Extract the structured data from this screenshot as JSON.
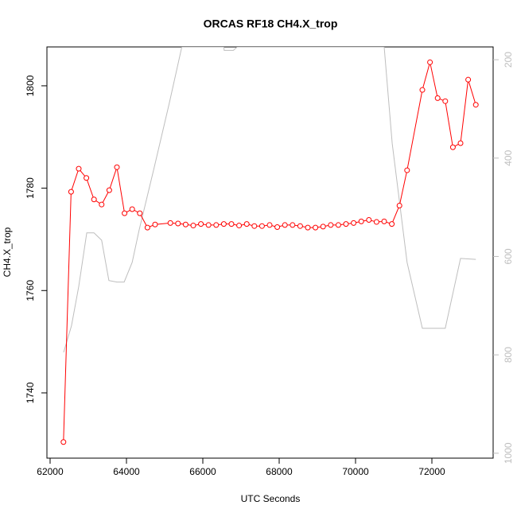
{
  "chart_data": {
    "type": "line",
    "title": "ORCAS RF18 CH4.X_trop",
    "x_label": "UTC Seconds",
    "y_label": "CH4.X_trop",
    "xlim": [
      61917,
      73604
    ],
    "ylim": [
      1727.25,
      1807.6
    ],
    "y2lim": [
      1010,
      174
    ],
    "xticks": [
      62000,
      64000,
      66000,
      68000,
      70000,
      72000
    ],
    "yticks": [
      1740,
      1760,
      1780,
      1800
    ],
    "y2ticks": [
      200,
      400,
      600,
      800,
      1000
    ],
    "series": [
      {
        "color": "#bebebe",
        "axis": "y2",
        "markers": false,
        "x": [
          62354,
          62560,
          62750,
          62960,
          63150,
          63350,
          63540,
          63750,
          63940,
          64150,
          64330,
          64730,
          65120,
          65450,
          66550,
          66560,
          66800,
          66900,
          70750,
          70960,
          71350,
          71750,
          72350,
          72750,
          73150
        ],
        "values": [
          795,
          741,
          661,
          552,
          552,
          567,
          649,
          652,
          652,
          612,
          547,
          418,
          289,
          174,
          174,
          181,
          181,
          174,
          174,
          370,
          612,
          746,
          746,
          604,
          606
        ]
      },
      {
        "color": "#ff0000",
        "markers": true,
        "x": [
          62350,
          62550,
          62750,
          62950,
          63150,
          63350,
          63550,
          63750,
          63950,
          64150,
          64350,
          64550,
          64750,
          65150,
          65350,
          65550,
          65750,
          65950,
          66150,
          66350,
          66550,
          66750,
          66950,
          67150,
          67350,
          67550,
          67750,
          67950,
          68150,
          68350,
          68550,
          68750,
          68950,
          69150,
          69350,
          69550,
          69750,
          69950,
          70150,
          70350,
          70550,
          70750,
          70950,
          71150,
          71350,
          71750,
          71950,
          72150,
          72350,
          72550,
          72750,
          72950,
          73150
        ],
        "values": [
          1730.4,
          1779.3,
          1783.8,
          1782.0,
          1777.8,
          1776.8,
          1779.6,
          1784.1,
          1775.1,
          1775.9,
          1775.1,
          1772.3,
          1772.9,
          1773.2,
          1773.1,
          1772.9,
          1772.7,
          1773.0,
          1772.8,
          1772.8,
          1773.0,
          1773.0,
          1772.7,
          1773.0,
          1772.6,
          1772.6,
          1772.8,
          1772.4,
          1772.8,
          1772.8,
          1772.6,
          1772.3,
          1772.3,
          1772.5,
          1772.8,
          1772.8,
          1773.0,
          1773.2,
          1773.5,
          1773.8,
          1773.4,
          1773.5,
          1773.0,
          1776.6,
          1783.5,
          1799.2,
          1804.6,
          1797.6,
          1797.0,
          1788.0,
          1788.8,
          1801.2,
          1796.3
        ]
      }
    ]
  }
}
